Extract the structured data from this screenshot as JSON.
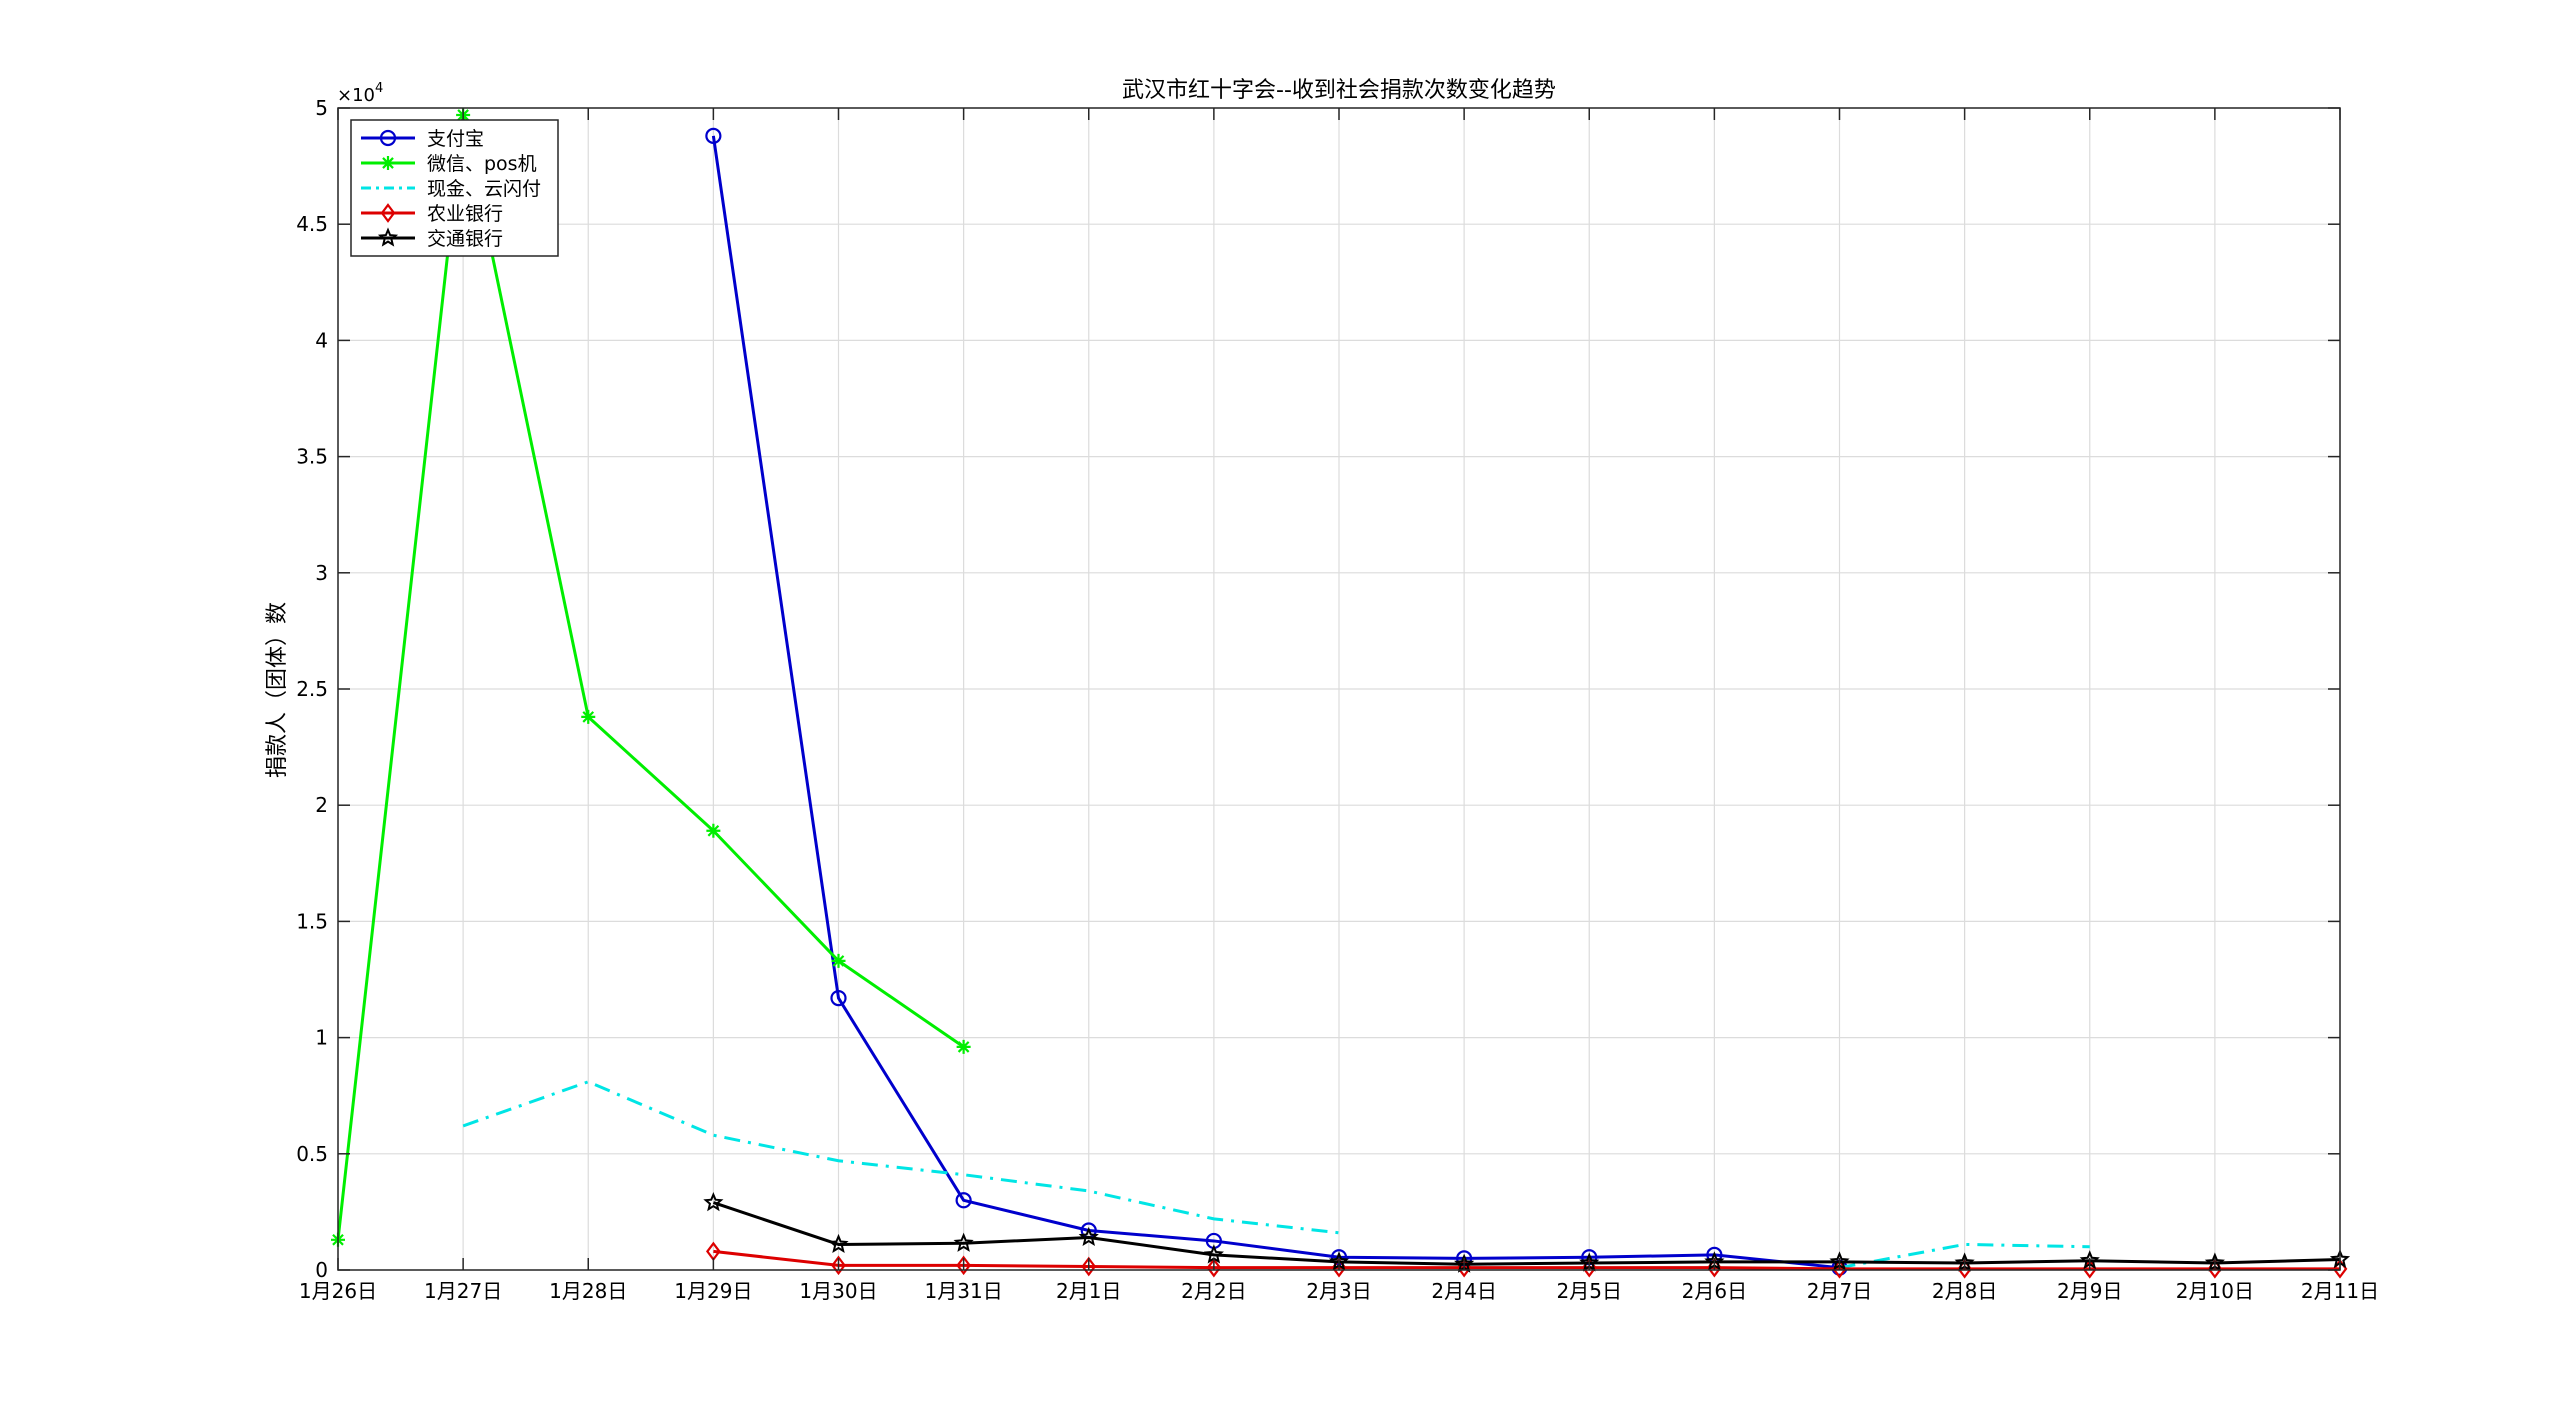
{
  "chart_data": {
    "type": "line",
    "title": "武汉市红十字会--收到社会捐款次数变化趋势",
    "xlabel": "",
    "ylabel": "捐款人（团体）数",
    "exponent_label": "×10",
    "exponent_power": "4",
    "categories": [
      "1月26日",
      "1月27日",
      "1月28日",
      "1月29日",
      "1月30日",
      "1月31日",
      "2月1日",
      "2月2日",
      "2月3日",
      "2月4日",
      "2月5日",
      "2月6日",
      "2月7日",
      "2月8日",
      "2月9日",
      "2月10日",
      "2月11日"
    ],
    "y_ticks": [
      "0",
      "0.5",
      "1",
      "1.5",
      "2",
      "2.5",
      "3",
      "3.5",
      "4",
      "4.5",
      "5"
    ],
    "ylim": [
      0,
      50000
    ],
    "grid": true,
    "legend_position": "top-left",
    "series": [
      {
        "name": "支付宝",
        "color": "#0000cc",
        "marker": "circle",
        "dash": "solid",
        "values": [
          null,
          null,
          null,
          48800,
          11700,
          3000,
          1700,
          1250,
          550,
          500,
          550,
          650,
          100,
          null,
          null,
          null,
          null
        ]
      },
      {
        "name": "微信、pos机",
        "color": "#00ee00",
        "marker": "asterisk",
        "dash": "solid",
        "values": [
          1300,
          49700,
          23800,
          18900,
          13300,
          9600,
          null,
          null,
          null,
          null,
          null,
          null,
          null,
          null,
          null,
          null,
          null
        ]
      },
      {
        "name": "现金、云闪付",
        "color": "#00e5e5",
        "marker": "none",
        "dash": "dashdot",
        "values": [
          null,
          6200,
          8100,
          5800,
          4700,
          4100,
          3400,
          2200,
          1600,
          null,
          null,
          null,
          100,
          1100,
          1000,
          null,
          null
        ]
      },
      {
        "name": "农业银行",
        "color": "#dd0000",
        "marker": "diamond",
        "dash": "solid",
        "values": [
          null,
          null,
          null,
          800,
          200,
          200,
          150,
          100,
          100,
          100,
          100,
          100,
          50,
          50,
          50,
          50,
          50
        ]
      },
      {
        "name": "交通银行",
        "color": "#000000",
        "marker": "star",
        "dash": "solid",
        "values": [
          null,
          null,
          null,
          2900,
          1100,
          1150,
          1400,
          650,
          350,
          250,
          300,
          350,
          350,
          300,
          400,
          300,
          450
        ]
      }
    ]
  }
}
